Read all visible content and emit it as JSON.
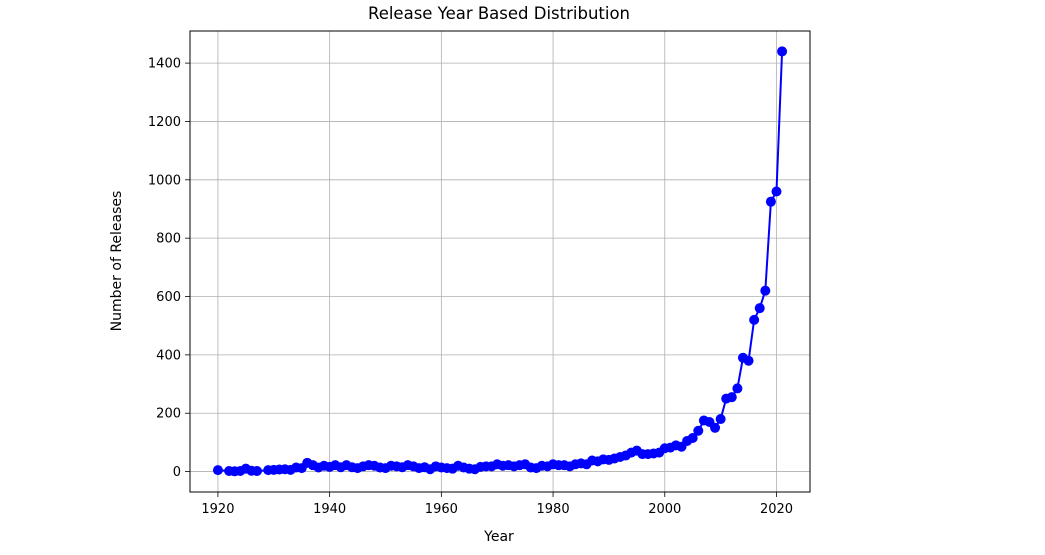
{
  "chart_data": {
    "type": "line",
    "title": "Release Year Based Distribution",
    "xlabel": "Year",
    "ylabel": "Number of Releases",
    "xlim": [
      1915,
      2026
    ],
    "ylim": [
      -70,
      1510
    ],
    "xticks": [
      1920,
      1940,
      1960,
      1980,
      2000,
      2020
    ],
    "yticks": [
      0,
      200,
      400,
      600,
      800,
      1000,
      1200,
      1400
    ],
    "grid": true,
    "series": [
      {
        "color": "#0000ff",
        "marker": "circle",
        "x": [
          1920,
          1922,
          1923,
          1924,
          1925,
          1926,
          1927,
          1929,
          1930,
          1931,
          1932,
          1933,
          1934,
          1935,
          1936,
          1937,
          1938,
          1939,
          1940,
          1941,
          1942,
          1943,
          1944,
          1945,
          1946,
          1947,
          1948,
          1949,
          1950,
          1951,
          1952,
          1953,
          1954,
          1955,
          1956,
          1957,
          1958,
          1959,
          1960,
          1961,
          1962,
          1963,
          1964,
          1965,
          1966,
          1967,
          1968,
          1969,
          1970,
          1971,
          1972,
          1973,
          1974,
          1975,
          1976,
          1977,
          1978,
          1979,
          1980,
          1981,
          1982,
          1983,
          1984,
          1985,
          1986,
          1987,
          1988,
          1989,
          1990,
          1991,
          1992,
          1993,
          1994,
          1995,
          1996,
          1997,
          1998,
          1999,
          2000,
          2001,
          2002,
          2003,
          2004,
          2005,
          2006,
          2007,
          2008,
          2009,
          2010,
          2011,
          2012,
          2013,
          2014,
          2015,
          2016,
          2017,
          2018,
          2019,
          2020,
          2021
        ],
        "y": [
          5,
          2,
          1,
          2,
          10,
          3,
          2,
          5,
          6,
          7,
          8,
          6,
          14,
          12,
          30,
          22,
          14,
          20,
          16,
          22,
          15,
          22,
          15,
          12,
          18,
          22,
          20,
          14,
          12,
          20,
          18,
          15,
          22,
          18,
          12,
          15,
          8,
          18,
          14,
          12,
          10,
          20,
          14,
          10,
          8,
          16,
          18,
          18,
          25,
          20,
          22,
          18,
          22,
          25,
          14,
          12,
          20,
          18,
          25,
          22,
          22,
          18,
          25,
          28,
          25,
          38,
          35,
          42,
          40,
          45,
          50,
          55,
          65,
          72,
          60,
          60,
          62,
          65,
          80,
          82,
          90,
          85,
          105,
          115,
          140,
          175,
          170,
          150,
          180,
          250,
          255,
          285,
          390,
          380,
          520,
          560,
          620,
          925,
          960,
          1440
        ]
      }
    ]
  }
}
